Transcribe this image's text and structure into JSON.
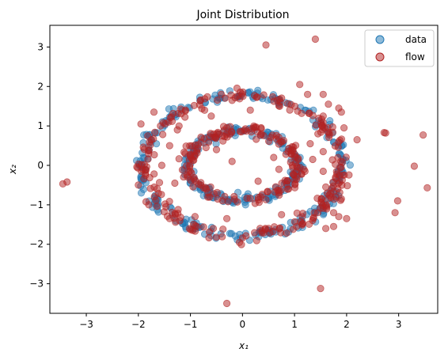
{
  "chart_data": {
    "type": "scatter",
    "title": "Joint Distribution",
    "xlabel": "x₁",
    "ylabel": "x₂",
    "xlim": [
      -3.7,
      3.75
    ],
    "ylim": [
      -3.75,
      3.55
    ],
    "xticks": [
      -3,
      -2,
      -1,
      0,
      1,
      2,
      3
    ],
    "yticks": [
      -3,
      -2,
      -1,
      0,
      1,
      2,
      3
    ],
    "grid": false,
    "legend_position": "top-right",
    "series": [
      {
        "name": "data",
        "color": "#1f77b4",
        "description": "two concentric rings: outer radius ~1.8 (x half-width ~1.95), inner radius ~0.9 (x half-width ~1.1)",
        "rings": [
          {
            "rx": 1.92,
            "ry": 1.78,
            "count": 230,
            "jitter": 0.07
          },
          {
            "rx": 1.05,
            "ry": 0.88,
            "count": 170,
            "jitter": 0.06
          }
        ]
      },
      {
        "name": "flow",
        "color": "#b22222",
        "description": "model samples approximating the two rings plus scattered outliers",
        "rings": [
          {
            "rx": 1.88,
            "ry": 1.76,
            "count": 230,
            "jitter": 0.09
          },
          {
            "rx": 1.05,
            "ry": 0.88,
            "count": 170,
            "jitter": 0.08
          }
        ],
        "outliers": [
          [
            -3.45,
            -0.47
          ],
          [
            -3.37,
            -0.42
          ],
          [
            -0.3,
            -3.5
          ],
          [
            0.45,
            3.05
          ],
          [
            1.4,
            3.2
          ],
          [
            1.5,
            -3.12
          ],
          [
            2.72,
            0.83
          ],
          [
            2.75,
            0.82
          ],
          [
            3.47,
            0.77
          ],
          [
            3.3,
            -0.02
          ],
          [
            3.55,
            -0.57
          ],
          [
            2.98,
            -0.9
          ],
          [
            2.93,
            -1.2
          ],
          [
            2.2,
            0.65
          ],
          [
            1.95,
            0.95
          ],
          [
            1.55,
            1.25
          ],
          [
            1.65,
            1.55
          ],
          [
            1.55,
            1.8
          ],
          [
            1.25,
            1.8
          ],
          [
            1.1,
            2.05
          ],
          [
            -1.95,
            1.05
          ],
          [
            -1.7,
            1.35
          ],
          [
            -0.3,
            -1.35
          ],
          [
            0.75,
            -1.25
          ],
          [
            1.2,
            -0.15
          ],
          [
            1.35,
            0.15
          ],
          [
            1.55,
            -0.15
          ],
          [
            1.6,
            -0.55
          ],
          [
            1.75,
            -1.2
          ],
          [
            1.85,
            -1.3
          ],
          [
            2.0,
            -1.35
          ],
          [
            1.9,
            -0.85
          ],
          [
            1.55,
            0.35
          ],
          [
            -1.4,
            0.5
          ],
          [
            -1.25,
            0.9
          ],
          [
            -1.3,
            -0.45
          ],
          [
            -1.4,
            -1.35
          ],
          [
            -1.1,
            0.3
          ],
          [
            0.7,
            -0.1
          ],
          [
            0.6,
            0.2
          ],
          [
            -0.2,
            0.1
          ],
          [
            0.3,
            -0.4
          ],
          [
            -0.5,
            0.4
          ],
          [
            0.15,
            1.4
          ],
          [
            -0.6,
            1.25
          ],
          [
            1.6,
            -1.6
          ],
          [
            1.75,
            -1.55
          ],
          [
            1.9,
            1.35
          ],
          [
            1.85,
            1.45
          ],
          [
            1.15,
            -1.3
          ],
          [
            -1.8,
            -1.0
          ],
          [
            -2.0,
            -0.5
          ],
          [
            -1.55,
            0.0
          ],
          [
            1.3,
            0.55
          ],
          [
            1.45,
            0.8
          ]
        ]
      }
    ]
  }
}
